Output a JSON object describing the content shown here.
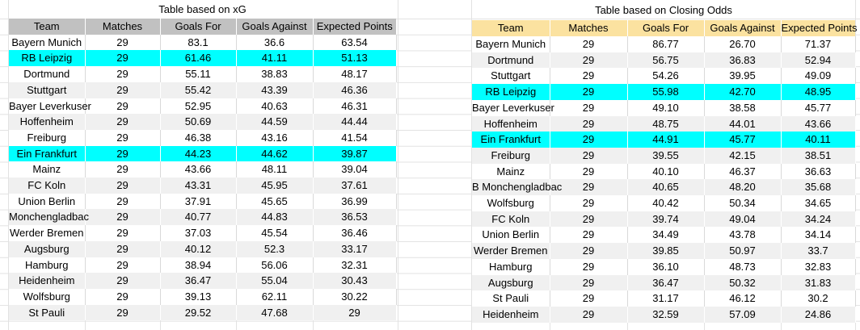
{
  "left_table": {
    "title": "Table based on xG",
    "columns": [
      "Team",
      "Matches",
      "Goals For",
      "Goals Against",
      "Expected Points"
    ],
    "rows": [
      {
        "cells": [
          "Bayern Munich",
          "29",
          "83.1",
          "36.6",
          "63.54"
        ],
        "highlight": false
      },
      {
        "cells": [
          "RB Leipzig",
          "29",
          "61.46",
          "41.11",
          "51.13"
        ],
        "highlight": true
      },
      {
        "cells": [
          "Dortmund",
          "29",
          "55.11",
          "38.83",
          "48.17"
        ],
        "highlight": false
      },
      {
        "cells": [
          "Stuttgart",
          "29",
          "55.42",
          "43.39",
          "46.36"
        ],
        "highlight": false
      },
      {
        "cells": [
          "Bayer Leverkuser",
          "29",
          "52.95",
          "40.63",
          "46.31"
        ],
        "highlight": false
      },
      {
        "cells": [
          "Hoffenheim",
          "29",
          "50.69",
          "44.59",
          "44.44"
        ],
        "highlight": false
      },
      {
        "cells": [
          "Freiburg",
          "29",
          "46.38",
          "43.16",
          "41.54"
        ],
        "highlight": false
      },
      {
        "cells": [
          "Ein Frankfurt",
          "29",
          "44.23",
          "44.62",
          "39.87"
        ],
        "highlight": true
      },
      {
        "cells": [
          "Mainz",
          "29",
          "43.66",
          "48.11",
          "39.04"
        ],
        "highlight": false
      },
      {
        "cells": [
          "FC Koln",
          "29",
          "43.31",
          "45.95",
          "37.61"
        ],
        "highlight": false
      },
      {
        "cells": [
          "Union Berlin",
          "29",
          "37.91",
          "45.65",
          "36.99"
        ],
        "highlight": false
      },
      {
        "cells": [
          "Monchengladbac",
          "29",
          "40.77",
          "44.83",
          "36.53"
        ],
        "highlight": false
      },
      {
        "cells": [
          "Werder Bremen",
          "29",
          "37.03",
          "45.54",
          "36.46"
        ],
        "highlight": false
      },
      {
        "cells": [
          "Augsburg",
          "29",
          "40.12",
          "52.3",
          "33.17"
        ],
        "highlight": false
      },
      {
        "cells": [
          "Hamburg",
          "29",
          "38.94",
          "56.06",
          "32.31"
        ],
        "highlight": false
      },
      {
        "cells": [
          "Heidenheim",
          "29",
          "36.47",
          "55.04",
          "30.43"
        ],
        "highlight": false
      },
      {
        "cells": [
          "Wolfsburg",
          "29",
          "39.13",
          "62.11",
          "30.22"
        ],
        "highlight": false
      },
      {
        "cells": [
          "St Pauli",
          "29",
          "29.52",
          "47.68",
          "29"
        ],
        "highlight": false
      }
    ]
  },
  "right_table": {
    "title": "Table based on Closing Odds",
    "columns": [
      "Team",
      "Matches",
      "Goals For",
      "Goals Against",
      "Expected Points"
    ],
    "rows": [
      {
        "cells": [
          "Bayern Munich",
          "29",
          "86.77",
          "26.70",
          "71.37"
        ],
        "highlight": false
      },
      {
        "cells": [
          "Dortmund",
          "29",
          "56.75",
          "36.83",
          "52.94"
        ],
        "highlight": false
      },
      {
        "cells": [
          "Stuttgart",
          "29",
          "54.26",
          "39.95",
          "49.09"
        ],
        "highlight": false
      },
      {
        "cells": [
          "RB Leipzig",
          "29",
          "55.98",
          "42.70",
          "48.95"
        ],
        "highlight": true
      },
      {
        "cells": [
          "Bayer Leverkuser",
          "29",
          "49.10",
          "38.58",
          "45.77"
        ],
        "highlight": false
      },
      {
        "cells": [
          "Hoffenheim",
          "29",
          "48.75",
          "44.01",
          "43.66"
        ],
        "highlight": false
      },
      {
        "cells": [
          "Ein Frankfurt",
          "29",
          "44.91",
          "45.77",
          "40.11"
        ],
        "highlight": true
      },
      {
        "cells": [
          "Freiburg",
          "29",
          "39.55",
          "42.15",
          "38.51"
        ],
        "highlight": false
      },
      {
        "cells": [
          "Mainz",
          "29",
          "40.10",
          "46.37",
          "36.63"
        ],
        "highlight": false
      },
      {
        "cells": [
          "B Monchengladbac",
          "29",
          "40.65",
          "48.20",
          "35.68"
        ],
        "highlight": false
      },
      {
        "cells": [
          "Wolfsburg",
          "29",
          "40.42",
          "50.34",
          "34.65"
        ],
        "highlight": false
      },
      {
        "cells": [
          "FC Koln",
          "29",
          "39.74",
          "49.04",
          "34.24"
        ],
        "highlight": false
      },
      {
        "cells": [
          "Union Berlin",
          "29",
          "34.49",
          "43.78",
          "34.14"
        ],
        "highlight": false
      },
      {
        "cells": [
          "Werder Bremen",
          "29",
          "39.85",
          "50.97",
          "33.7"
        ],
        "highlight": false
      },
      {
        "cells": [
          "Hamburg",
          "29",
          "36.10",
          "48.73",
          "32.83"
        ],
        "highlight": false
      },
      {
        "cells": [
          "Augsburg",
          "29",
          "36.47",
          "50.32",
          "31.83"
        ],
        "highlight": false
      },
      {
        "cells": [
          "St Pauli",
          "29",
          "31.17",
          "46.12",
          "30.2"
        ],
        "highlight": false
      },
      {
        "cells": [
          "Heidenheim",
          "29",
          "32.59",
          "57.09",
          "24.86"
        ],
        "highlight": false
      }
    ]
  },
  "colors": {
    "header_left": "#c1c1c1",
    "header_right": "#fbe2a0",
    "highlight": "#00ffff",
    "stripe": "#f0f0f0",
    "gridline": "#e2e2e2",
    "cell_border": "#d9d9d9",
    "text": "#141414"
  }
}
